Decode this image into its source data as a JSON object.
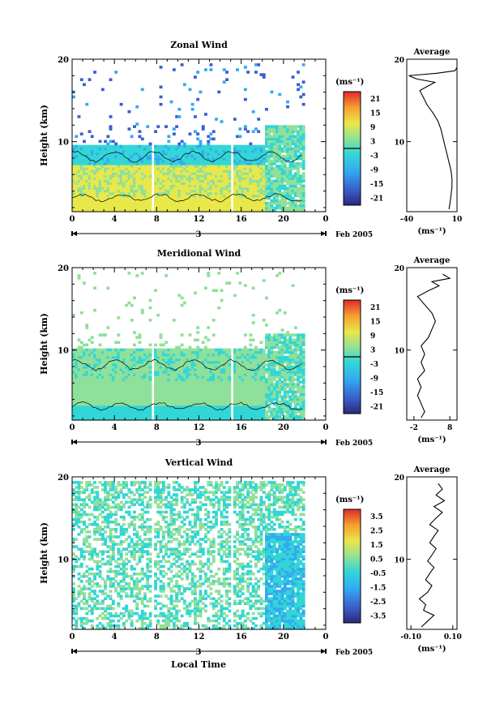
{
  "figure": {
    "xlabel": "Local Time",
    "date_label": "Feb 2005",
    "day_label": "3"
  },
  "chart_data": [
    {
      "type": "heatmap",
      "title": "Zonal Wind",
      "ylabel": "Height (km)",
      "xlabel": "Local Time",
      "x_ticks": [
        "0",
        "4",
        "8",
        "12",
        "16",
        "20",
        "0"
      ],
      "xlim": [
        0,
        24
      ],
      "y_ticks": [
        "10",
        "20"
      ],
      "ylim": [
        1.5,
        20
      ],
      "colorbar": {
        "unit": "(ms⁻¹)",
        "ticks": [
          "21",
          "15",
          "9",
          "3",
          "-3",
          "-9",
          "-15",
          "-21"
        ],
        "range": [
          -24,
          24
        ],
        "zero_line": true
      },
      "data_gaps_hours": [
        7.6,
        15.0
      ],
      "data_end_hour": 21.8,
      "average": {
        "title": "Average",
        "xlabel": "(ms⁻¹)",
        "x_ticks": [
          "-40",
          "10"
        ],
        "xlim": [
          -40,
          10
        ],
        "y_ticks": [
          "10",
          "20"
        ],
        "profile": [
          {
            "h": 1.8,
            "v": 2
          },
          {
            "h": 2.5,
            "v": 3
          },
          {
            "h": 3.5,
            "v": 4
          },
          {
            "h": 4.5,
            "v": 5
          },
          {
            "h": 5.5,
            "v": 5
          },
          {
            "h": 6.5,
            "v": 4
          },
          {
            "h": 7.5,
            "v": 2
          },
          {
            "h": 8.5,
            "v": 0
          },
          {
            "h": 9.5,
            "v": -2
          },
          {
            "h": 10.5,
            "v": -4
          },
          {
            "h": 11.5,
            "v": -6
          },
          {
            "h": 12.5,
            "v": -9
          },
          {
            "h": 13.5,
            "v": -14
          },
          {
            "h": 14.5,
            "v": -20
          },
          {
            "h": 15.5,
            "v": -24
          },
          {
            "h": 16.2,
            "v": -27
          },
          {
            "h": 16.8,
            "v": -18
          },
          {
            "h": 17.2,
            "v": -12
          },
          {
            "h": 17.6,
            "v": -30
          },
          {
            "h": 18.0,
            "v": -38
          },
          {
            "h": 18.3,
            "v": -10
          },
          {
            "h": 18.6,
            "v": 8
          },
          {
            "h": 19.0,
            "v": 10
          }
        ]
      }
    },
    {
      "type": "heatmap",
      "title": "Meridional Wind",
      "ylabel": "Height (km)",
      "xlabel": "Local Time",
      "x_ticks": [
        "0",
        "4",
        "8",
        "12",
        "16",
        "20",
        "0"
      ],
      "xlim": [
        0,
        24
      ],
      "y_ticks": [
        "10",
        "20"
      ],
      "ylim": [
        1.5,
        20
      ],
      "colorbar": {
        "unit": "(ms⁻¹)",
        "ticks": [
          "21",
          "15",
          "9",
          "3",
          "-3",
          "-9",
          "-15",
          "-21"
        ],
        "range": [
          -24,
          24
        ],
        "zero_line": true
      },
      "data_gaps_hours": [
        7.6,
        15.0
      ],
      "data_end_hour": 21.8,
      "average": {
        "title": "Average",
        "xlabel": "(ms⁻¹)",
        "x_ticks": [
          "-2",
          "8"
        ],
        "xlim": [
          -4,
          10
        ],
        "y_ticks": [
          "10",
          "20"
        ],
        "profile": [
          {
            "h": 1.8,
            "v": 0
          },
          {
            "h": 2.5,
            "v": 1
          },
          {
            "h": 3.5,
            "v": 0
          },
          {
            "h": 4.5,
            "v": -1
          },
          {
            "h": 5.5,
            "v": 0
          },
          {
            "h": 6.5,
            "v": -1
          },
          {
            "h": 7.5,
            "v": 1
          },
          {
            "h": 8.5,
            "v": 0
          },
          {
            "h": 9.5,
            "v": 1
          },
          {
            "h": 10.5,
            "v": 0
          },
          {
            "h": 11.5,
            "v": 2
          },
          {
            "h": 12.5,
            "v": 3
          },
          {
            "h": 13.5,
            "v": 4
          },
          {
            "h": 14.5,
            "v": 3
          },
          {
            "h": 15.5,
            "v": 1
          },
          {
            "h": 16.5,
            "v": -1
          },
          {
            "h": 17.2,
            "v": 2
          },
          {
            "h": 17.8,
            "v": 5
          },
          {
            "h": 18.3,
            "v": 3
          },
          {
            "h": 18.7,
            "v": 8
          },
          {
            "h": 19.2,
            "v": 6
          }
        ]
      }
    },
    {
      "type": "heatmap",
      "title": "Vertical Wind",
      "ylabel": "Height (km)",
      "xlabel": "Local Time",
      "x_ticks": [
        "0",
        "4",
        "8",
        "12",
        "16",
        "20",
        "0"
      ],
      "xlim": [
        0,
        24
      ],
      "y_ticks": [
        "10",
        "20"
      ],
      "ylim": [
        1.5,
        20
      ],
      "colorbar": {
        "unit": "(ms⁻¹)",
        "ticks": [
          "3.5",
          "2.5",
          "1.5",
          "0.5",
          "-0.5",
          "-1.5",
          "-2.5",
          "-3.5"
        ],
        "range": [
          -4,
          4
        ],
        "zero_line": false
      },
      "data_gaps_hours": [
        7.6,
        15.0
      ],
      "data_end_hour": 21.8,
      "average": {
        "title": "Average",
        "xlabel": "(ms⁻¹)",
        "x_ticks": [
          "-0.10",
          "0.10"
        ],
        "xlim": [
          -0.12,
          0.12
        ],
        "y_ticks": [
          "10",
          "20"
        ],
        "profile": [
          {
            "h": 1.8,
            "v": -0.05
          },
          {
            "h": 2.5,
            "v": -0.02
          },
          {
            "h": 3.2,
            "v": 0.01
          },
          {
            "h": 3.8,
            "v": -0.04
          },
          {
            "h": 4.5,
            "v": -0.03
          },
          {
            "h": 5.2,
            "v": -0.06
          },
          {
            "h": 6.0,
            "v": -0.02
          },
          {
            "h": 6.8,
            "v": 0.0
          },
          {
            "h": 7.5,
            "v": -0.03
          },
          {
            "h": 8.3,
            "v": -0.01
          },
          {
            "h": 9.0,
            "v": 0.01
          },
          {
            "h": 9.8,
            "v": -0.02
          },
          {
            "h": 10.5,
            "v": 0.0
          },
          {
            "h": 11.3,
            "v": 0.02
          },
          {
            "h": 12.0,
            "v": -0.01
          },
          {
            "h": 12.8,
            "v": 0.01
          },
          {
            "h": 13.5,
            "v": 0.03
          },
          {
            "h": 14.2,
            "v": -0.01
          },
          {
            "h": 15.0,
            "v": 0.02
          },
          {
            "h": 15.7,
            "v": 0.05
          },
          {
            "h": 16.4,
            "v": 0.01
          },
          {
            "h": 17.1,
            "v": 0.06
          },
          {
            "h": 17.8,
            "v": 0.02
          },
          {
            "h": 18.5,
            "v": 0.05
          },
          {
            "h": 19.2,
            "v": 0.03
          }
        ]
      }
    }
  ]
}
